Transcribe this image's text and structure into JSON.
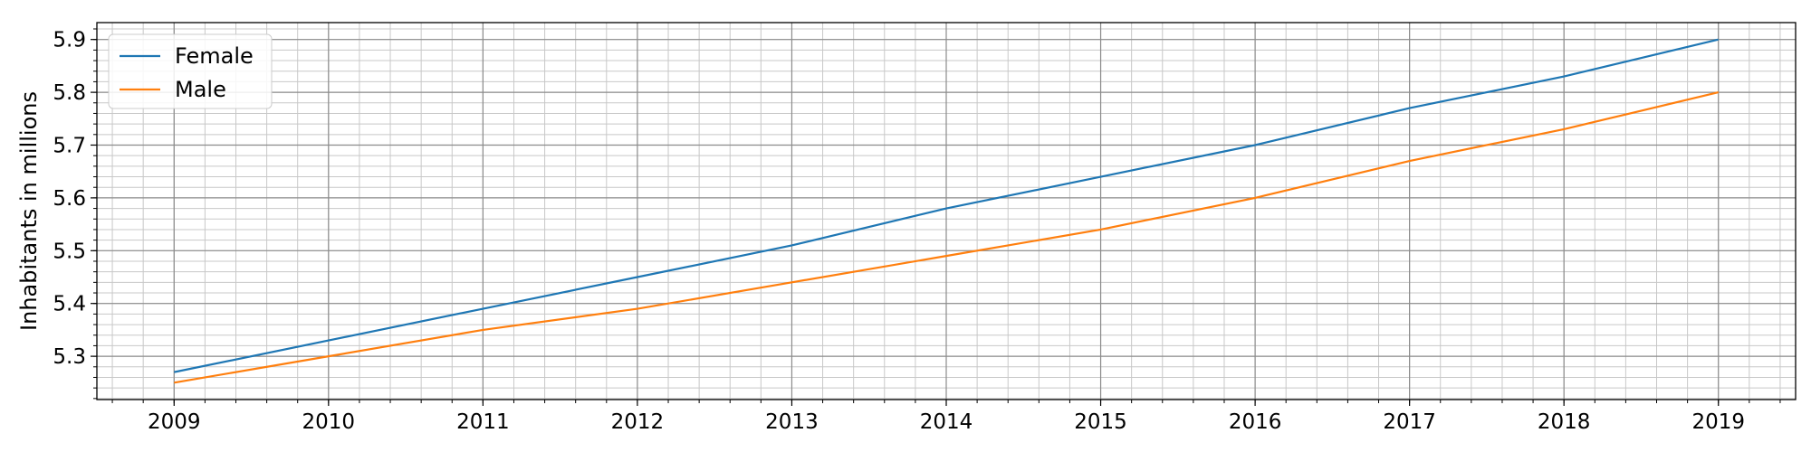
{
  "chart_data": {
    "type": "line",
    "title": "",
    "xlabel": "",
    "ylabel": "Inhabitants in millions",
    "x": [
      2009,
      2010,
      2011,
      2012,
      2013,
      2014,
      2015,
      2016,
      2017,
      2018,
      2019
    ],
    "x_tick_labels": [
      "2009",
      "2010",
      "2011",
      "2012",
      "2013",
      "2014",
      "2015",
      "2016",
      "2017",
      "2018",
      "2019"
    ],
    "xlim": [
      2008.5,
      2019.5
    ],
    "y_ticks": [
      5.3,
      5.4,
      5.5,
      5.6,
      5.7,
      5.8,
      5.9
    ],
    "y_tick_labels": [
      "5.3",
      "5.4",
      "5.5",
      "5.6",
      "5.7",
      "5.8",
      "5.9"
    ],
    "ylim": [
      5.218,
      5.932
    ],
    "grid": "major and minor",
    "legend_position": "top-left",
    "series": [
      {
        "name": "Female",
        "color": "#1f77b4",
        "values": [
          5.27,
          5.33,
          5.39,
          5.45,
          5.51,
          5.58,
          5.64,
          5.7,
          5.77,
          5.83,
          5.9
        ]
      },
      {
        "name": "Male",
        "color": "#ff7f0e",
        "values": [
          5.25,
          5.3,
          5.35,
          5.39,
          5.44,
          5.49,
          5.54,
          5.6,
          5.67,
          5.73,
          5.8
        ]
      }
    ]
  }
}
